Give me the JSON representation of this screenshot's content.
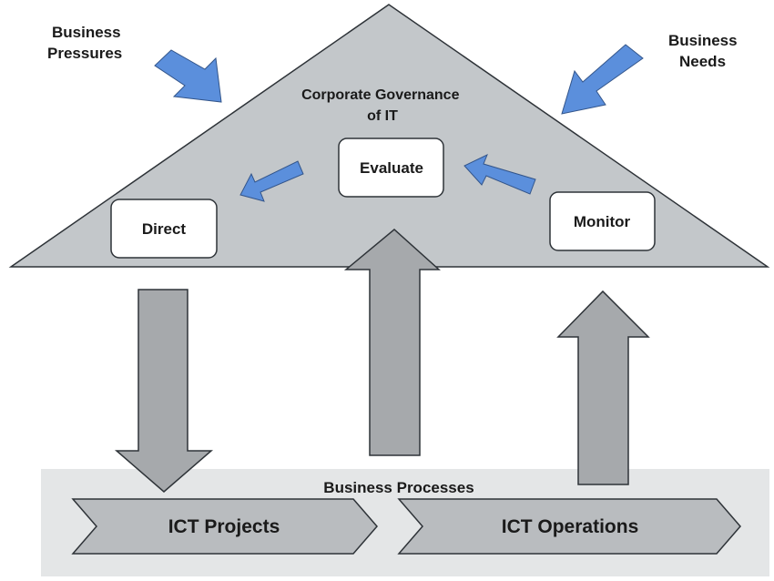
{
  "diagram": {
    "business_pressures": [
      "Business",
      "Pressures"
    ],
    "business_needs": [
      "Business",
      "Needs"
    ],
    "governance_title": [
      "Corporate Governance",
      "of  IT"
    ],
    "evaluate": "Evaluate",
    "direct": "Direct",
    "monitor": "Monitor",
    "business_processes": "Business Processes",
    "ict_projects": "ICT Projects",
    "ict_operations": "ICT Operations"
  },
  "colors": {
    "roof_fill": "#c3c7ca",
    "outline": "#2e3338",
    "gray_arrow": "#a6a9ac",
    "blue_arrow": "#5b8fdc",
    "blue_arrow_outline": "#33558a",
    "processes_band": "#e4e6e7",
    "chevron_fill": "#b9bcbf",
    "box_fill": "#ffffff"
  }
}
